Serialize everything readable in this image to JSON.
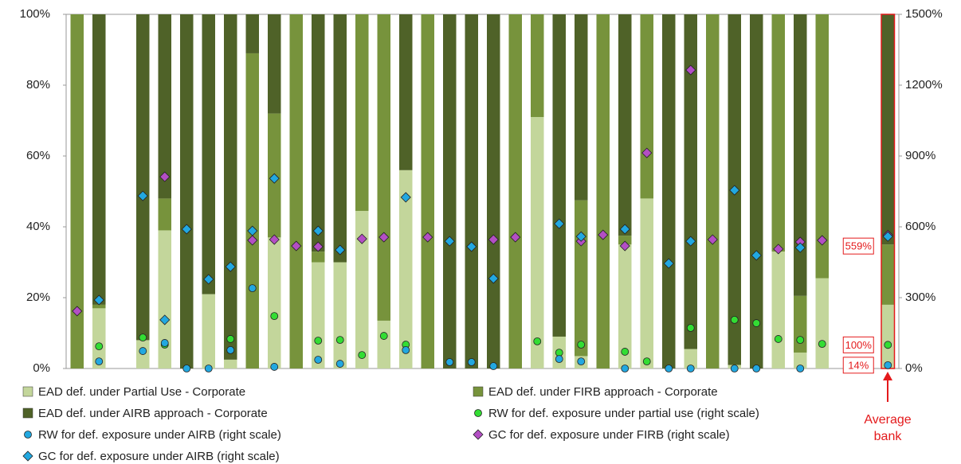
{
  "chart_data": {
    "type": "bar",
    "stacked": true,
    "categories": [
      null,
      null,
      null,
      null,
      null,
      null,
      null,
      null,
      null,
      null,
      null,
      null,
      null,
      null,
      null,
      null,
      null,
      null,
      null,
      null,
      null,
      null,
      null,
      null,
      null,
      null,
      null,
      null,
      null,
      null,
      null,
      null,
      null,
      null,
      null,
      null,
      null,
      "Average bank"
    ],
    "highlight_category_color": "#e41a1c",
    "ylim": [
      0,
      100
    ],
    "yticks": [
      {
        "value": 0,
        "label": "0%"
      },
      {
        "value": 20,
        "label": "20%"
      },
      {
        "value": 40,
        "label": "40%"
      },
      {
        "value": 60,
        "label": "60%"
      },
      {
        "value": 80,
        "label": "80%"
      },
      {
        "value": 100,
        "label": "100%"
      }
    ],
    "y2lim": [
      0,
      1500
    ],
    "y2ticks": [
      {
        "value": 0,
        "label": "0%"
      },
      {
        "value": 300,
        "label": "300%"
      },
      {
        "value": 600,
        "label": "600%"
      },
      {
        "value": 900,
        "label": "900%"
      },
      {
        "value": 1200,
        "label": "1200%"
      },
      {
        "value": 1500,
        "label": "1500%"
      }
    ],
    "grid": false,
    "series": [
      {
        "name": "EAD def. under Partial Use - Corporate",
        "type": "bar",
        "color": "#c3d69b",
        "values": [
          0,
          17,
          null,
          8,
          39,
          0,
          21,
          2.5,
          0,
          37,
          0,
          30,
          30,
          44.5,
          13.5,
          56,
          0,
          0,
          0,
          0,
          0,
          71,
          9,
          3.5,
          0,
          35,
          48,
          0,
          5.5,
          0,
          1,
          0,
          33,
          4.5,
          25.5,
          null,
          null,
          18
        ]
      },
      {
        "name": "EAD def. under FIRB approach - Corporate",
        "type": "bar",
        "color": "#77933c",
        "values": [
          100,
          1,
          null,
          0,
          9,
          0,
          0,
          0,
          89,
          35,
          100,
          3,
          0,
          55.5,
          86.5,
          0,
          100,
          0,
          0,
          0,
          100,
          29,
          0,
          44,
          100,
          2.5,
          52,
          0,
          0,
          100,
          0,
          0,
          67,
          16,
          74.5,
          null,
          null,
          17
        ]
      },
      {
        "name": "EAD def. under AIRB approach - Corporate",
        "type": "bar",
        "color": "#4f6228",
        "values": [
          0,
          82,
          null,
          92,
          52,
          100,
          79,
          97.5,
          11,
          28,
          0,
          67,
          70,
          0,
          0,
          44,
          0,
          100,
          100,
          100,
          0,
          0,
          91,
          52.5,
          0,
          62.5,
          0,
          100,
          94.5,
          0,
          99,
          100,
          0,
          79.5,
          0,
          null,
          null,
          65
        ]
      },
      {
        "name": "RW for def. exposure under partial use (right scale)",
        "type": "scatter",
        "marker": "circle",
        "axis": "y2",
        "color": "#33dd33",
        "values": [
          null,
          94,
          null,
          131,
          101,
          null,
          null,
          125,
          null,
          222,
          null,
          118,
          121,
          57,
          138,
          101,
          null,
          null,
          null,
          null,
          null,
          115,
          67,
          101,
          null,
          71,
          30,
          null,
          172,
          null,
          206,
          192,
          125,
          121,
          104,
          null,
          null,
          100
        ],
        "value_labels": [
          null,
          null,
          null,
          null,
          null,
          null,
          null,
          null,
          null,
          null,
          null,
          null,
          null,
          null,
          null,
          null,
          null,
          null,
          null,
          null,
          null,
          null,
          null,
          null,
          null,
          null,
          null,
          null,
          null,
          null,
          null,
          null,
          null,
          null,
          null,
          null,
          null,
          "100%"
        ]
      },
      {
        "name": "RW for def. exposure under AIRB (right scale)",
        "type": "scatter",
        "marker": "circle",
        "axis": "y2",
        "color": "#22a8e0",
        "values": [
          null,
          30,
          null,
          74,
          108,
          0,
          0,
          78,
          340,
          7,
          null,
          37,
          20,
          null,
          null,
          78,
          null,
          27,
          27,
          10,
          null,
          null,
          40,
          30,
          null,
          0,
          null,
          0,
          0,
          null,
          0,
          0,
          null,
          0,
          null,
          null,
          null,
          14
        ],
        "value_labels": [
          null,
          null,
          null,
          null,
          null,
          null,
          null,
          null,
          null,
          null,
          null,
          null,
          null,
          null,
          null,
          null,
          null,
          null,
          null,
          null,
          null,
          null,
          null,
          null,
          null,
          null,
          null,
          null,
          null,
          null,
          null,
          null,
          null,
          null,
          null,
          null,
          null,
          "14%"
        ]
      },
      {
        "name": "GC for def. exposure under FIRB (right scale)",
        "type": "scatter",
        "marker": "diamond",
        "axis": "y2",
        "color": "#b34fc4",
        "values": [
          243,
          null,
          null,
          null,
          812,
          null,
          null,
          null,
          543,
          546,
          519,
          516,
          null,
          549,
          556,
          null,
          556,
          null,
          null,
          546,
          556,
          null,
          null,
          539,
          566,
          519,
          913,
          null,
          1264,
          546,
          null,
          null,
          506,
          536,
          543,
          null,
          null,
          565
        ]
      },
      {
        "name": "GC for def. exposure under AIRB (right scale)",
        "type": "scatter",
        "marker": "diamond",
        "axis": "y2",
        "color": "#22a8e0",
        "values": [
          null,
          290,
          null,
          731,
          206,
          590,
          378,
          431,
          583,
          805,
          null,
          583,
          502,
          null,
          null,
          725,
          null,
          539,
          516,
          381,
          null,
          null,
          613,
          559,
          null,
          590,
          null,
          445,
          539,
          null,
          755,
          479,
          null,
          512,
          null,
          null,
          null,
          559
        ],
        "value_labels": [
          null,
          null,
          null,
          null,
          null,
          null,
          null,
          null,
          null,
          null,
          null,
          null,
          null,
          null,
          null,
          null,
          null,
          null,
          null,
          null,
          null,
          null,
          null,
          null,
          null,
          null,
          null,
          null,
          null,
          null,
          null,
          null,
          null,
          null,
          null,
          null,
          null,
          "559%"
        ]
      }
    ]
  }
}
